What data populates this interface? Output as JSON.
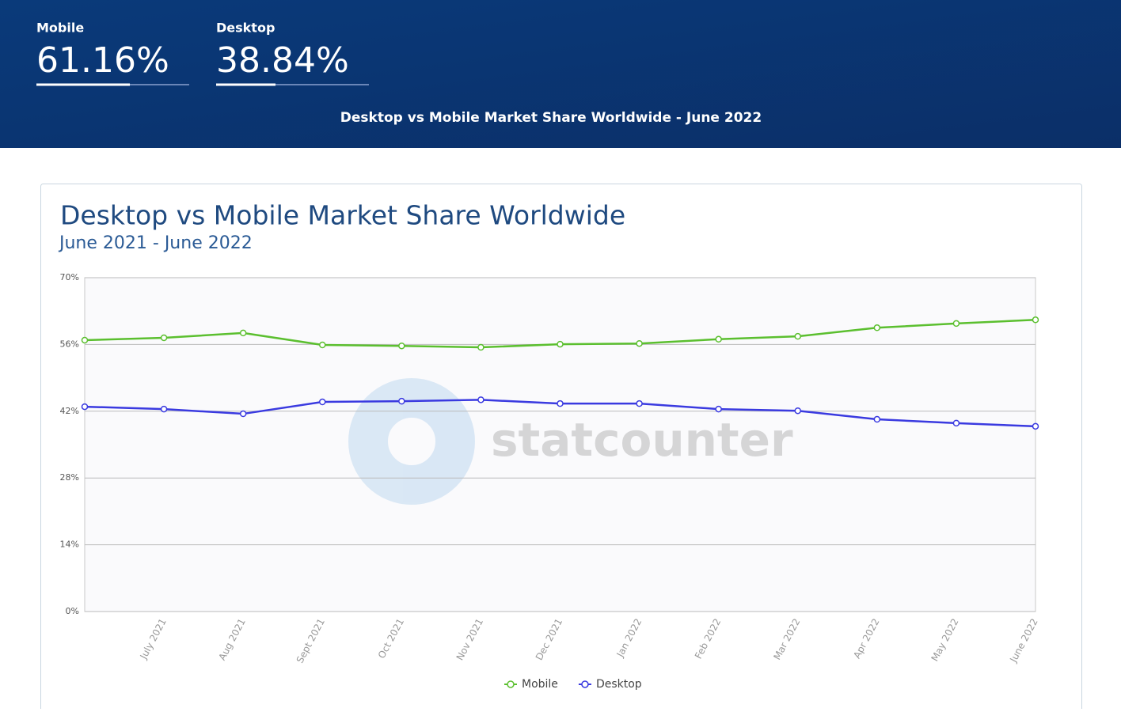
{
  "header": {
    "stats": [
      {
        "label": "Mobile",
        "value": 61.16,
        "value_label": "61.16%"
      },
      {
        "label": "Desktop",
        "value": 38.84,
        "value_label": "38.84%"
      }
    ],
    "banner": "Desktop vs Mobile Market Share Worldwide - June 2022"
  },
  "chart_data": {
    "type": "line",
    "title": "Desktop vs Mobile Market Share Worldwide",
    "subtitle": "June 2021 - June 2022",
    "watermark": "statcounter",
    "categories": [
      null,
      "July 2021",
      "Aug 2021",
      "Sept 2021",
      "Oct 2021",
      "Nov 2021",
      "Dec 2021",
      "Jan 2022",
      "Feb 2022",
      "Mar 2022",
      "Apr 2022",
      "May 2022",
      "June 2022"
    ],
    "series": [
      {
        "name": "Mobile",
        "color": "#5bbf2f",
        "values": [
          56.9,
          57.4,
          58.4,
          55.9,
          55.7,
          55.4,
          56.05,
          56.2,
          57.1,
          57.7,
          59.5,
          60.4,
          61.16
        ]
      },
      {
        "name": "Desktop",
        "color": "#3a3ae0",
        "values": [
          42.95,
          42.45,
          41.46,
          43.95,
          44.1,
          44.4,
          43.6,
          43.6,
          42.45,
          42.1,
          40.3,
          39.5,
          38.84
        ]
      }
    ],
    "ylim": [
      0,
      70
    ],
    "yticks": [
      {
        "value": 0,
        "label": "0%"
      },
      {
        "value": 14,
        "label": "14%"
      },
      {
        "value": 28,
        "label": "28%"
      },
      {
        "value": 42,
        "label": "42%"
      },
      {
        "value": 56,
        "label": "56%"
      },
      {
        "value": 70,
        "label": "70%"
      }
    ],
    "grid": true,
    "legend": "bottom"
  }
}
